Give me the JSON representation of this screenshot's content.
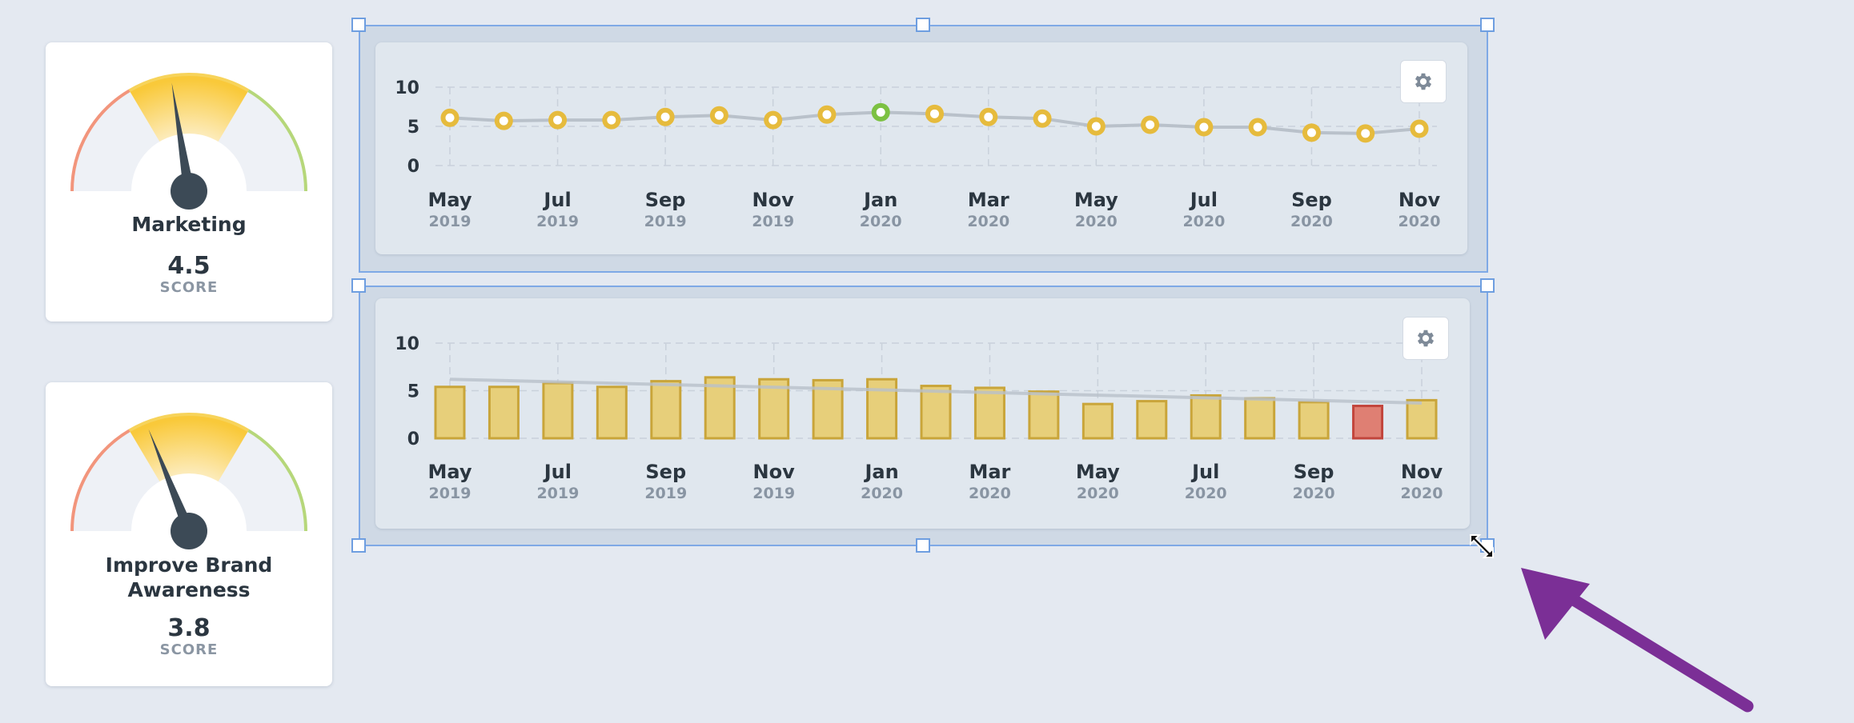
{
  "cards": [
    {
      "title": "Marketing",
      "score": "4.5",
      "unit": "SCORE",
      "needle_value": 4.5
    },
    {
      "title": "Improve Brand Awareness",
      "score": "3.8",
      "unit": "SCORE",
      "needle_value": 3.8
    }
  ],
  "colors": {
    "gauge_red": "#f2957c",
    "gauge_yellow": "#f9c93a",
    "gauge_green": "#b6d77a",
    "gauge_bg": "#eef1f6",
    "needle": "#3c4a56",
    "point_default": "#e6bb3d",
    "point_highlight": "#7cc142",
    "bar_fill": "#e7cf7a",
    "bar_stroke": "#c9a53a",
    "bar_alert_fill": "#df7f73",
    "bar_alert_stroke": "#c2453c",
    "trend": "#b9c1ca",
    "selection": "#7fa9e6",
    "arrow": "#7b2f96"
  },
  "toolbar": {
    "settings_icon": "gear-icon"
  },
  "chart_data": [
    {
      "type": "line",
      "x": [
        "May 2019",
        "Jun 2019",
        "Jul 2019",
        "Aug 2019",
        "Sep 2019",
        "Oct 2019",
        "Nov 2019",
        "Dec 2019",
        "Jan 2020",
        "Feb 2020",
        "Mar 2020",
        "Apr 2020",
        "May 2020",
        "Jun 2020",
        "Jul 2020",
        "Aug 2020",
        "Sep 2020",
        "Oct 2020",
        "Nov 2020"
      ],
      "series": [
        {
          "values": [
            6.1,
            5.7,
            5.8,
            5.8,
            6.2,
            6.4,
            5.8,
            6.5,
            6.8,
            6.6,
            6.2,
            6.0,
            5.0,
            5.2,
            4.9,
            4.9,
            4.2,
            4.1,
            4.7
          ]
        }
      ],
      "highlight_index": 8,
      "tick_labels": [
        [
          "May",
          "2019"
        ],
        [
          "Jul",
          "2019"
        ],
        [
          "Sep",
          "2019"
        ],
        [
          "Nov",
          "2019"
        ],
        [
          "Jan",
          "2020"
        ],
        [
          "Mar",
          "2020"
        ],
        [
          "May",
          "2020"
        ],
        [
          "Jul",
          "2020"
        ],
        [
          "Sep",
          "2020"
        ],
        [
          "Nov",
          "2020"
        ]
      ],
      "y_ticks": [
        0,
        5,
        10
      ],
      "ylim": [
        0,
        10
      ],
      "grid": true
    },
    {
      "type": "bar",
      "x": [
        "May 2019",
        "Jun 2019",
        "Jul 2019",
        "Aug 2019",
        "Sep 2019",
        "Oct 2019",
        "Nov 2019",
        "Dec 2019",
        "Jan 2020",
        "Feb 2020",
        "Mar 2020",
        "Apr 2020",
        "May 2020",
        "Jun 2020",
        "Jul 2020",
        "Aug 2020",
        "Sep 2020",
        "Oct 2020",
        "Nov 2020"
      ],
      "series": [
        {
          "values": [
            5.4,
            5.4,
            5.8,
            5.4,
            6.0,
            6.4,
            6.2,
            6.1,
            6.2,
            5.5,
            5.3,
            4.9,
            3.6,
            3.9,
            4.5,
            4.2,
            3.8,
            3.4,
            4.0
          ]
        }
      ],
      "alert_index": 17,
      "trend": [
        6.2,
        3.7
      ],
      "tick_labels": [
        [
          "May",
          "2019"
        ],
        [
          "Jul",
          "2019"
        ],
        [
          "Sep",
          "2019"
        ],
        [
          "Nov",
          "2019"
        ],
        [
          "Jan",
          "2020"
        ],
        [
          "Mar",
          "2020"
        ],
        [
          "May",
          "2020"
        ],
        [
          "Jul",
          "2020"
        ],
        [
          "Sep",
          "2020"
        ],
        [
          "Nov",
          "2020"
        ]
      ],
      "y_ticks": [
        0,
        5,
        10
      ],
      "ylim": [
        0,
        10
      ],
      "grid": true
    }
  ]
}
